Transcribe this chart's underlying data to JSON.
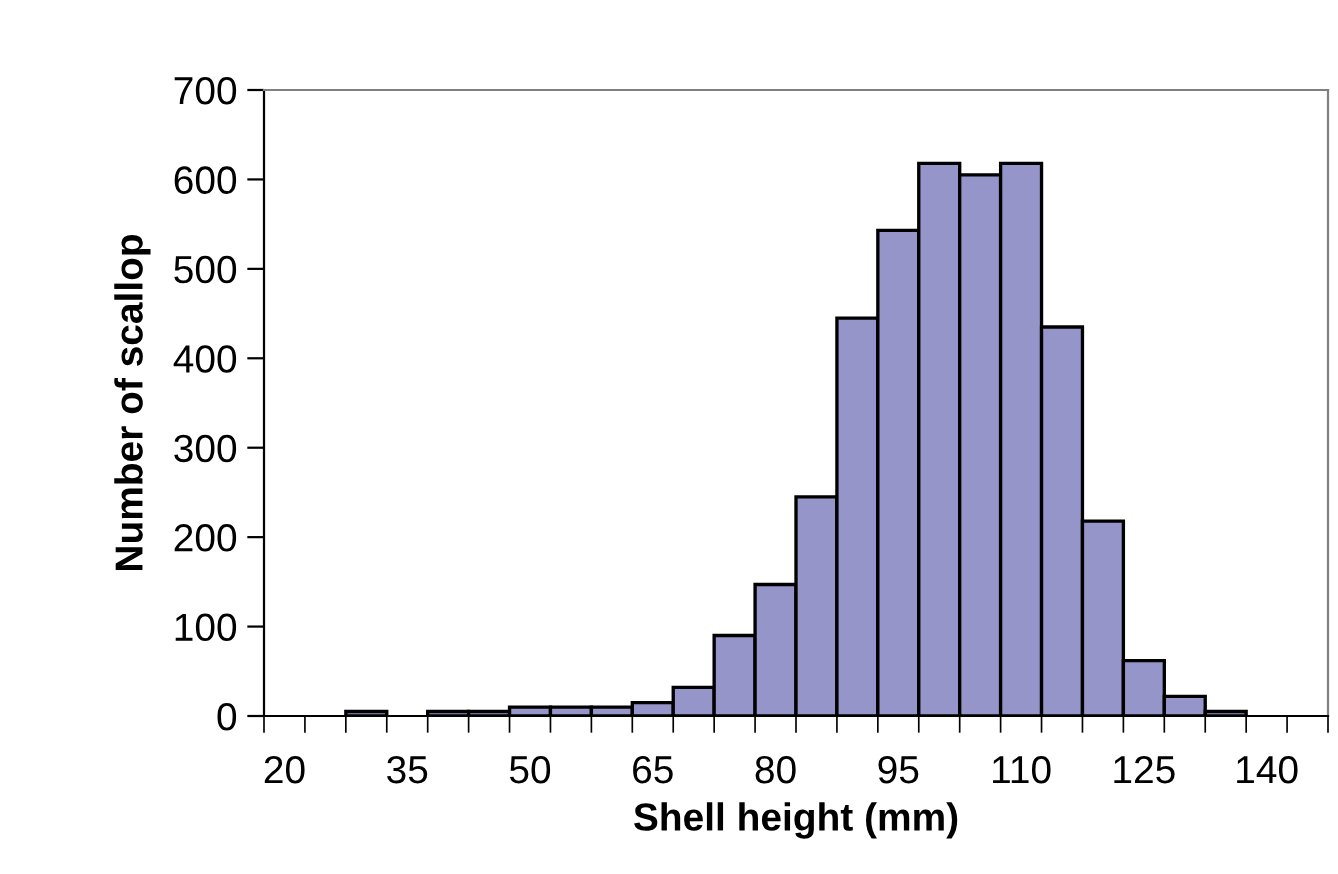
{
  "chart_data": {
    "type": "bar",
    "xlabel": "Shell height (mm)",
    "ylabel": "Number of scallop",
    "categories": [
      "20",
      null,
      null,
      "35",
      null,
      null,
      "50",
      null,
      null,
      "65",
      null,
      null,
      "80",
      null,
      null,
      "95",
      null,
      null,
      "110",
      null,
      null,
      "125",
      null,
      null,
      "140",
      null
    ],
    "values": [
      0,
      0,
      5,
      0,
      5,
      5,
      10,
      10,
      10,
      15,
      32,
      90,
      147,
      245,
      445,
      543,
      618,
      605,
      618,
      435,
      218,
      62,
      22,
      5,
      0,
      0
    ],
    "color": "#9595c9",
    "ylim": [
      0,
      700
    ],
    "yticks": [
      0,
      100,
      200,
      300,
      400,
      500,
      600,
      700
    ],
    "grid": false,
    "legend": false
  }
}
